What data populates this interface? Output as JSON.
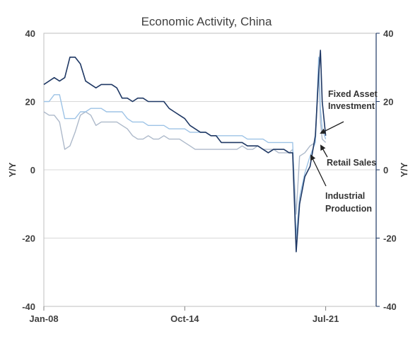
{
  "chart_data": {
    "type": "line",
    "title": "Economic Activity, China",
    "ylabel_left": "Y/Y",
    "ylabel_right": "Y/Y",
    "ylim": [
      -40,
      40
    ],
    "yticks": [
      -40,
      -20,
      0,
      20,
      40
    ],
    "xtick_labels": [
      "Jan-08",
      "Oct-14",
      "Jul-21"
    ],
    "grid": true,
    "x": [
      "2008-01",
      "2008-04",
      "2008-07",
      "2008-10",
      "2009-01",
      "2009-04",
      "2009-07",
      "2009-10",
      "2010-01",
      "2010-04",
      "2010-07",
      "2010-10",
      "2011-01",
      "2011-04",
      "2011-07",
      "2011-10",
      "2012-01",
      "2012-04",
      "2012-07",
      "2012-10",
      "2013-01",
      "2013-04",
      "2013-07",
      "2013-10",
      "2014-01",
      "2014-04",
      "2014-07",
      "2014-10",
      "2015-01",
      "2015-04",
      "2015-07",
      "2015-10",
      "2016-01",
      "2016-04",
      "2016-07",
      "2016-10",
      "2017-01",
      "2017-04",
      "2017-07",
      "2017-10",
      "2018-01",
      "2018-04",
      "2018-07",
      "2018-10",
      "2019-01",
      "2019-04",
      "2019-07",
      "2019-10",
      "2019-12",
      "2020-02",
      "2020-04",
      "2020-07",
      "2020-10",
      "2021-01",
      "2021-03",
      "2021-04",
      "2021-05",
      "2021-07"
    ],
    "series": [
      {
        "name": "Fixed Asset Investment",
        "color": "#1f3864",
        "values": [
          25,
          26,
          27,
          26,
          27,
          33,
          33,
          31,
          26,
          25,
          24,
          25,
          25,
          25,
          24,
          21,
          21,
          20,
          21,
          21,
          20,
          20,
          20,
          20,
          18,
          17,
          16,
          15,
          13,
          12,
          11,
          11,
          10,
          10,
          8,
          8,
          8,
          8,
          8,
          7,
          7,
          7,
          6,
          5,
          6,
          6,
          6,
          5,
          5,
          -24,
          -10,
          -2,
          1,
          10,
          28,
          35,
          20,
          10
        ]
      },
      {
        "name": "Retail Sales",
        "color": "#9dc3e6",
        "values": [
          20,
          20,
          22,
          22,
          15,
          15,
          15,
          17,
          17,
          18,
          18,
          18,
          17,
          17,
          17,
          17,
          15,
          14,
          14,
          14,
          13,
          13,
          13,
          13,
          12,
          12,
          12,
          12,
          11,
          11,
          11,
          11,
          10,
          10,
          10,
          10,
          10,
          10,
          10,
          9,
          9,
          9,
          9,
          8,
          8,
          8,
          8,
          8,
          8,
          -20,
          -8,
          -1,
          4,
          8,
          33,
          18,
          12,
          9
        ]
      },
      {
        "name": "Industrial Production",
        "color": "#adb9ca",
        "values": [
          17,
          16,
          16,
          14,
          6,
          7,
          11,
          16,
          17,
          16,
          13,
          14,
          14,
          14,
          14,
          13,
          12,
          10,
          9,
          9,
          10,
          9,
          9,
          10,
          9,
          9,
          9,
          8,
          7,
          6,
          6,
          6,
          6,
          6,
          6,
          6,
          6,
          6,
          7,
          6,
          6,
          7,
          6,
          6,
          6,
          5,
          5,
          5,
          6,
          -13,
          4,
          5,
          7,
          8,
          30,
          14,
          9,
          8
        ]
      }
    ],
    "annotations": [
      {
        "lines": [
          "Fixed Asset",
          "Investment"
        ],
        "series": "Fixed Asset Investment"
      },
      {
        "lines": [
          "Retail Sales"
        ],
        "series": "Retail Sales"
      },
      {
        "lines": [
          "Industrial",
          "Production"
        ],
        "series": "Industrial Production"
      }
    ]
  }
}
